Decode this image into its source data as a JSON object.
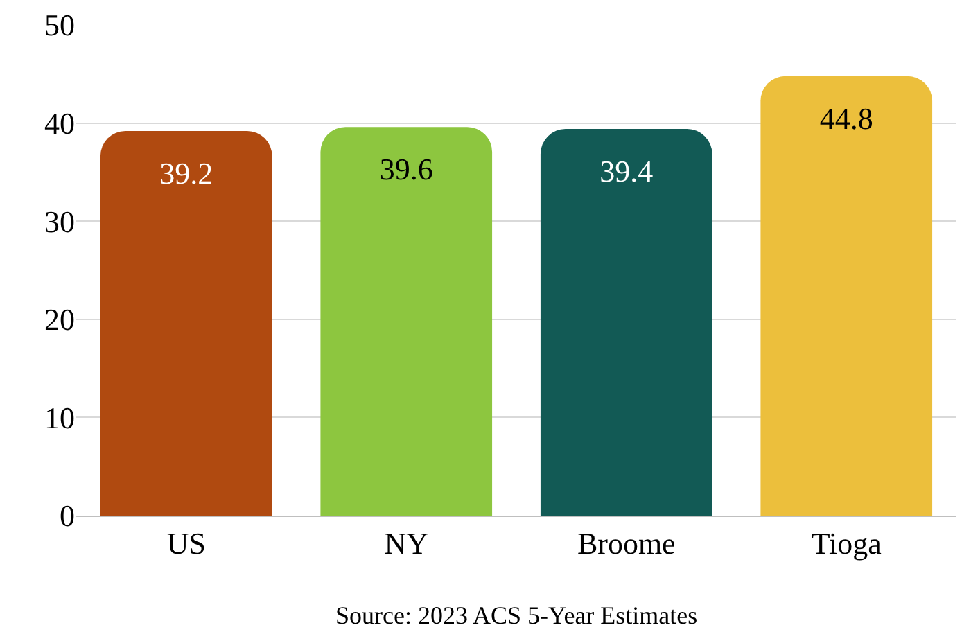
{
  "chart_data": {
    "type": "bar",
    "categories": [
      "US",
      "NY",
      "Broome",
      "Tioga"
    ],
    "values": [
      39.2,
      39.6,
      39.4,
      44.8
    ],
    "colors": [
      "#b04a10",
      "#8dc63f",
      "#125a55",
      "#ecbf3c"
    ],
    "ylim": [
      0,
      50
    ],
    "yticks": [
      0,
      10,
      20,
      30,
      40,
      50
    ],
    "grid": "y",
    "data_labels": true,
    "legend": false,
    "annotations": [
      "Source: 2023 ACS 5-Year Estimates"
    ]
  }
}
